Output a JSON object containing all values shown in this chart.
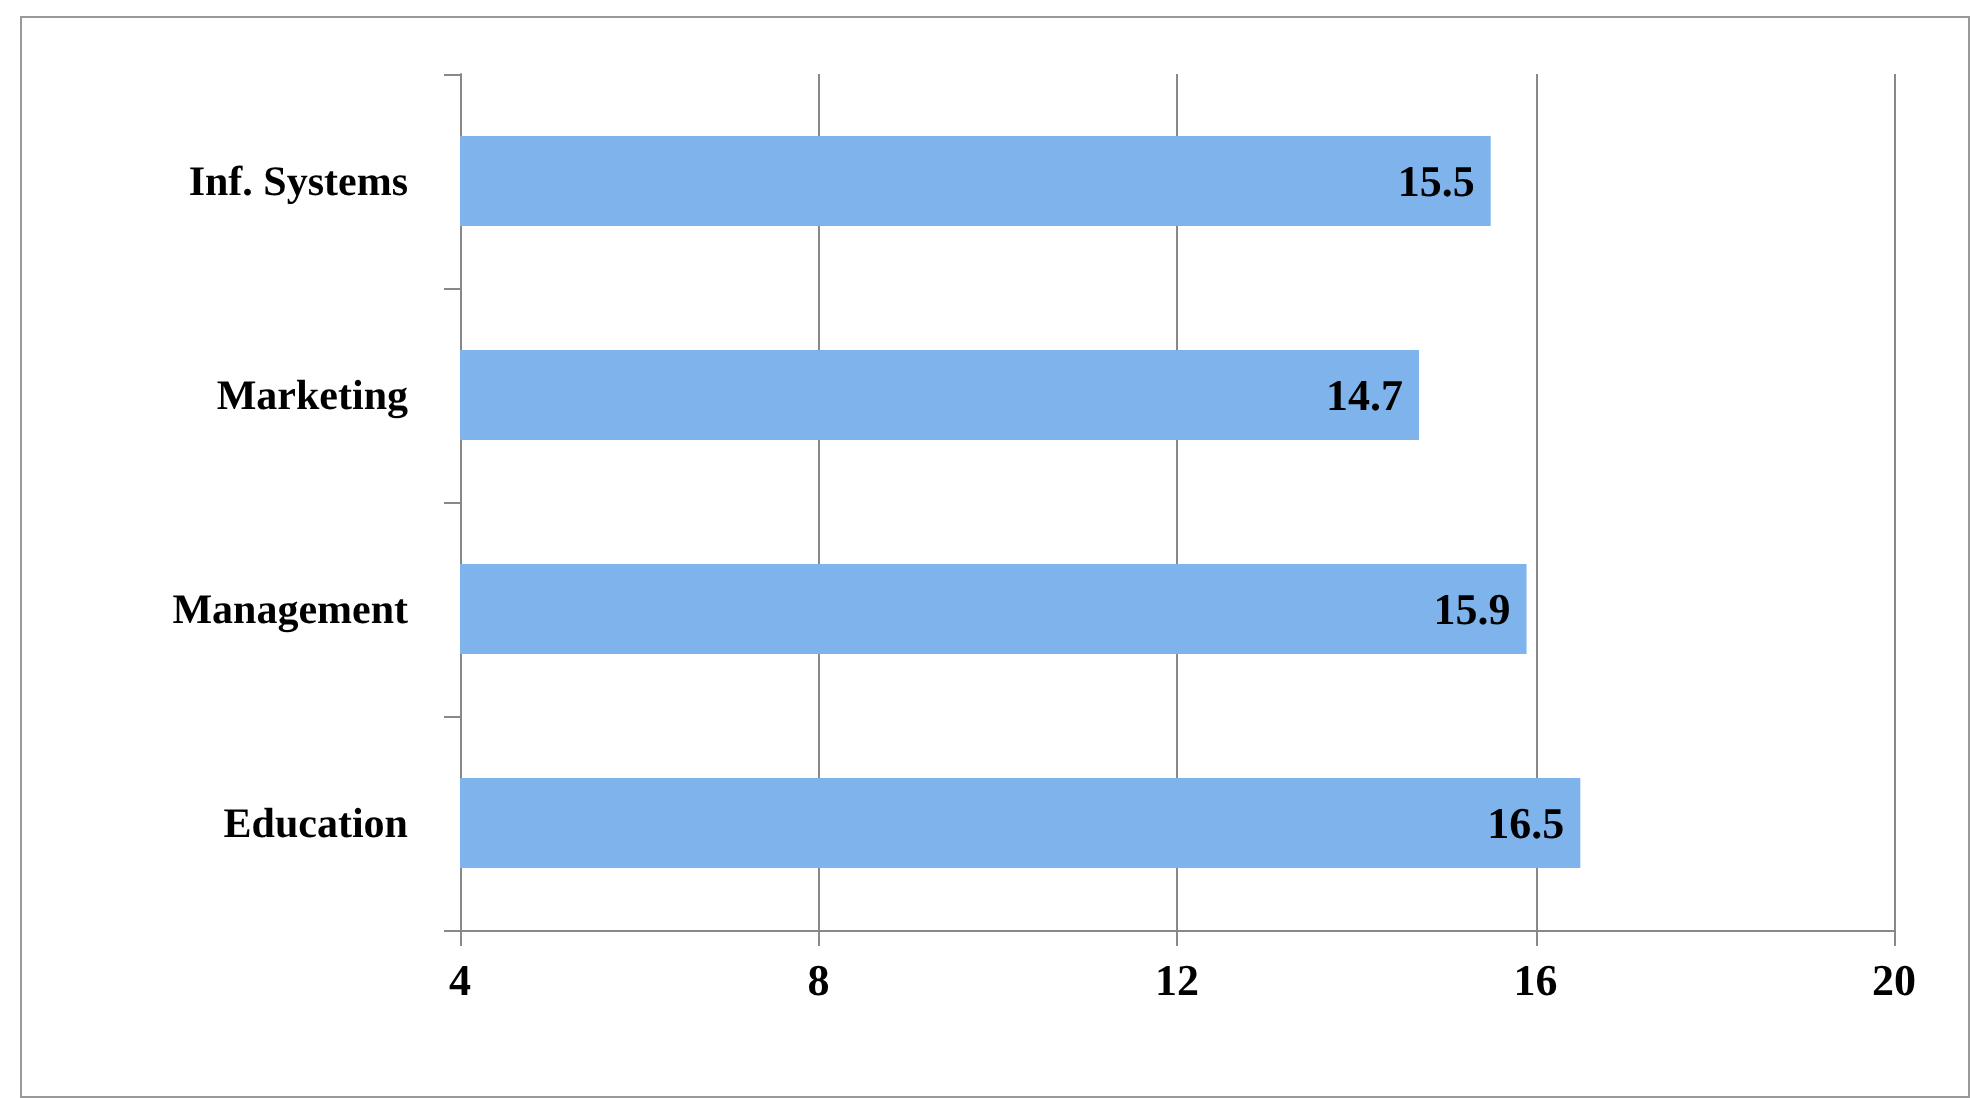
{
  "chart_data": {
    "type": "bar",
    "orientation": "horizontal",
    "categories": [
      "Inf. Systems",
      "Marketing",
      "Management",
      "Education"
    ],
    "values": [
      15.5,
      14.7,
      15.9,
      16.5
    ],
    "color": "#7fb3ec",
    "xlim": [
      4,
      20
    ],
    "xticks": [
      4,
      8,
      12,
      16,
      20
    ],
    "grid": "x",
    "data_labels": true
  }
}
